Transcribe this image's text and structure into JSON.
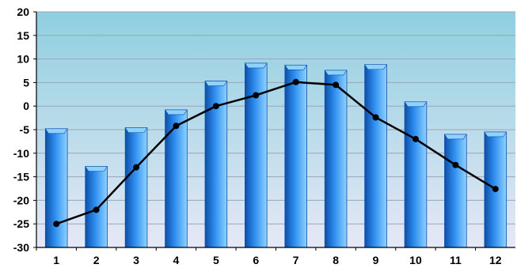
{
  "chart_data": {
    "type": "bar",
    "title": "",
    "xlabel": "",
    "ylabel": "",
    "categories": [
      "1",
      "2",
      "3",
      "4",
      "5",
      "6",
      "7",
      "8",
      "9",
      "10",
      "11",
      "12"
    ],
    "series": [
      {
        "type": "bar",
        "values": [
          -4.8,
          -12.8,
          -4.6,
          -0.8,
          5.3,
          9.1,
          8.7,
          7.6,
          8.8,
          0.9,
          -6.0,
          -5.5
        ]
      },
      {
        "type": "line",
        "values": [
          -25.0,
          -22.0,
          -13.0,
          -4.2,
          0.0,
          2.3,
          5.1,
          4.5,
          -2.4,
          -7.0,
          -12.5,
          -17.6
        ]
      }
    ],
    "ylim": [
      -30,
      20
    ],
    "yticks": [
      20,
      15,
      10,
      5,
      0,
      -5,
      -10,
      -15,
      -20,
      -25,
      -30
    ],
    "grid": true,
    "legend": "none",
    "colors": {
      "bar": "#2f8ff0",
      "bar_dark": "#0d4fa8",
      "bar_light": "#8fd2ff",
      "line": "#000000",
      "plot_top": "#8fcfe0",
      "plot_bottom": "#e6e8f6",
      "grid": "#9aa6b6"
    }
  }
}
